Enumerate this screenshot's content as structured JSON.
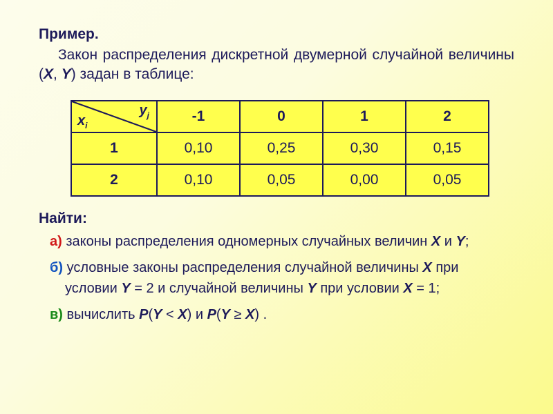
{
  "title": "Пример.",
  "intro_html": "Закон распределения дискретной двумерной случайной вели­чины (<span class=\"ital\"><b>X</b></span>, <span class=\"ital\"><b>Y</b></span>) задан в таблице:",
  "table": {
    "corner": {
      "y_label": "y",
      "y_sub": "j",
      "x_label": "x",
      "x_sub": "i"
    },
    "y_headers": [
      "-1",
      "0",
      "1",
      "2"
    ],
    "x_headers": [
      "1",
      "2"
    ],
    "rows": [
      [
        "0,10",
        "0,25",
        "0,30",
        "0,15"
      ],
      [
        "0,10",
        "0,05",
        "0,00",
        "0,05"
      ]
    ],
    "border_color": "#1d1a5a",
    "cell_bg": "#ffff4d",
    "header_fontweight": 700,
    "font_size_pt": 16
  },
  "find_label": "Найти:",
  "items": {
    "a": {
      "label": "а)",
      "text_html": "законы распределения одномерных случайных величин <span class=\"bi\">X</span> и <span class=\"bi\">Y</span>;"
    },
    "b": {
      "label": "б)",
      "text_html": "условные законы распределения случайной величины <span class=\"bi\">X</span> при условии <span class=\"bi\">Y</span> = 2 и случайной величины <span class=\"bi\">Y</span> при условии <span class=\"bi\">X</span> = 1;"
    },
    "v": {
      "label": "в)",
      "text_html": "вычислить <span class=\"bi\">P</span>(<span class=\"bi\">Y</span> &lt; <span class=\"bi\">X</span>) и <span class=\"bi\">P</span>(<span class=\"bi\">Y</span> ≥ <span class=\"bi\">X</span>) ."
    }
  },
  "colors": {
    "text": "#1d1a5a",
    "bg_gradient_from": "#fdfdec",
    "bg_gradient_to": "#fbfa8c",
    "label_a": "#d11818",
    "label_b": "#1455c0",
    "label_v": "#1a8a1a"
  }
}
